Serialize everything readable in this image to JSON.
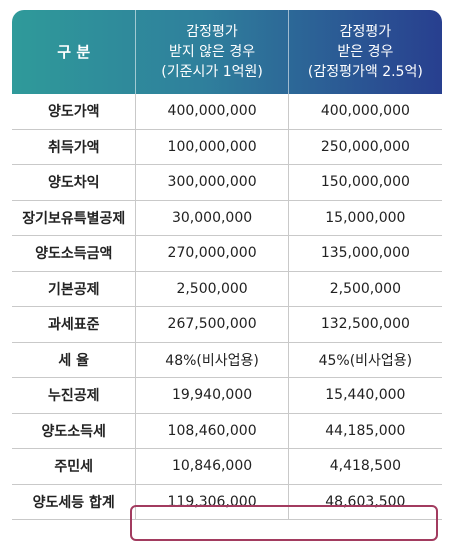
{
  "header": {
    "col0": "구 분",
    "col1": [
      "감정평가",
      "받지 않은 경우",
      "(기준시가 1억원)"
    ],
    "col2": [
      "감정평가",
      "받은 경우",
      "(감정평가액 2.5억)"
    ]
  },
  "rows": [
    {
      "label": "양도가액",
      "a": "400,000,000",
      "b": "400,000,000"
    },
    {
      "label": "취득가액",
      "a": "100,000,000",
      "b": "250,000,000"
    },
    {
      "label": "양도차익",
      "a": "300,000,000",
      "b": "150,000,000"
    },
    {
      "label": "장기보유특별공제",
      "a": "30,000,000",
      "b": "15,000,000"
    },
    {
      "label": "양도소득금액",
      "a": "270,000,000",
      "b": "135,000,000"
    },
    {
      "label": "기본공제",
      "a": "2,500,000",
      "b": "2,500,000"
    },
    {
      "label": "과세표준",
      "a": "267,500,000",
      "b": "132,500,000"
    },
    {
      "label": "세 율",
      "a": "48%(비사업용)",
      "b": "45%(비사업용)"
    },
    {
      "label": "누진공제",
      "a": "19,940,000",
      "b": "15,440,000"
    },
    {
      "label": "양도소득세",
      "a": "108,460,000",
      "b": "44,185,000"
    },
    {
      "label": "주민세",
      "a": "10,846,000",
      "b": "4,418,500"
    },
    {
      "label": "양도세등 합계",
      "a": "119,306,000",
      "b": "48,603,500"
    }
  ],
  "colors": {
    "header_start": "#2f9a9a",
    "header_end": "#283f8f",
    "highlight_border": "#a23b5f"
  }
}
